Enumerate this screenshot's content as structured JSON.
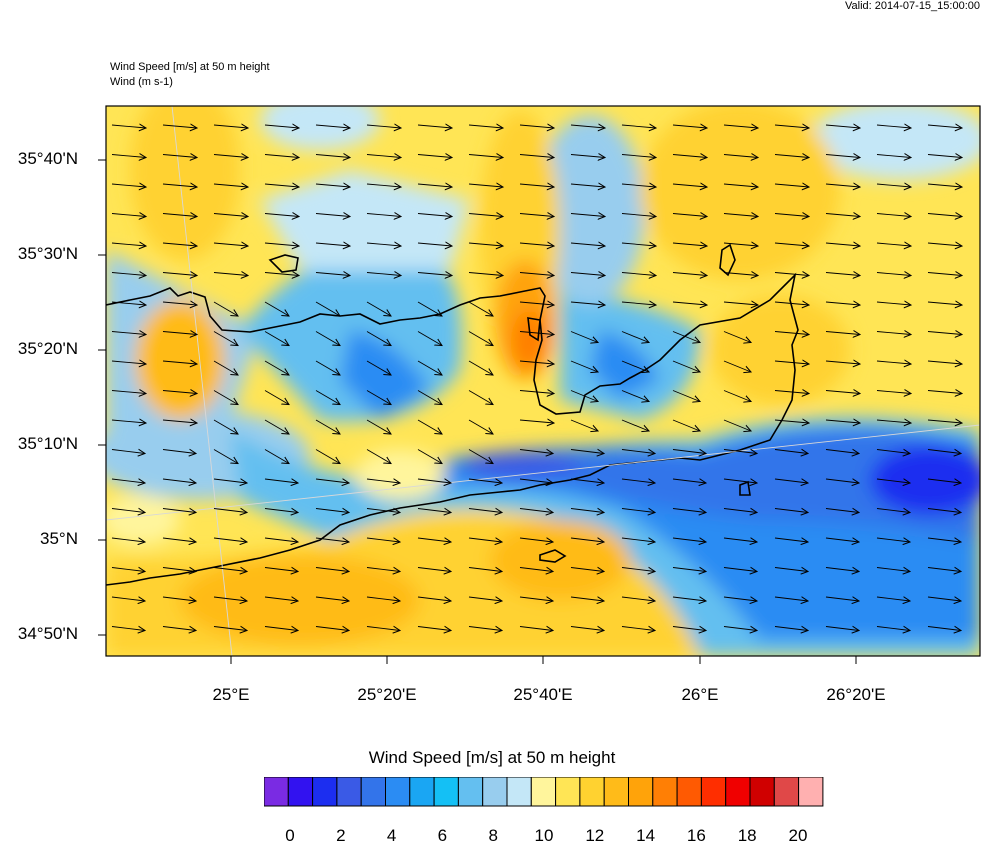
{
  "header": {
    "valid": "Valid: 2014-07-15_15:00:00",
    "title_line1": "Wind Speed [m/s] at 50 m height",
    "title_line2": "Wind   (m s-1)"
  },
  "map": {
    "lat_labels": [
      "35°40'N",
      "35°30'N",
      "35°20'N",
      "35°10'N",
      "35°N",
      "34°50'N"
    ],
    "lon_labels": [
      "25°E",
      "25°20'E",
      "25°40'E",
      "26°E",
      "26°20'E"
    ],
    "wind_direction": "east-southeast"
  },
  "colorbar": {
    "title": "Wind Speed [m/s] at 50 m height",
    "tick_labels": [
      "0",
      "2",
      "4",
      "6",
      "8",
      "10",
      "12",
      "14",
      "16",
      "18",
      "20"
    ],
    "colors": [
      "#7a2be3",
      "#3212f0",
      "#1c2ef0",
      "#3a5ae6",
      "#3374ea",
      "#2b8cf3",
      "#1aa6f3",
      "#14c0f5",
      "#64bff0",
      "#98cdee",
      "#c4e7f7",
      "#fff59c",
      "#ffe555",
      "#ffd230",
      "#ffbb19",
      "#ffa30a",
      "#ff7f05",
      "#ff5a02",
      "#ff2e00",
      "#f00000",
      "#d00000",
      "#e04848",
      "#ffb0b0"
    ]
  }
}
